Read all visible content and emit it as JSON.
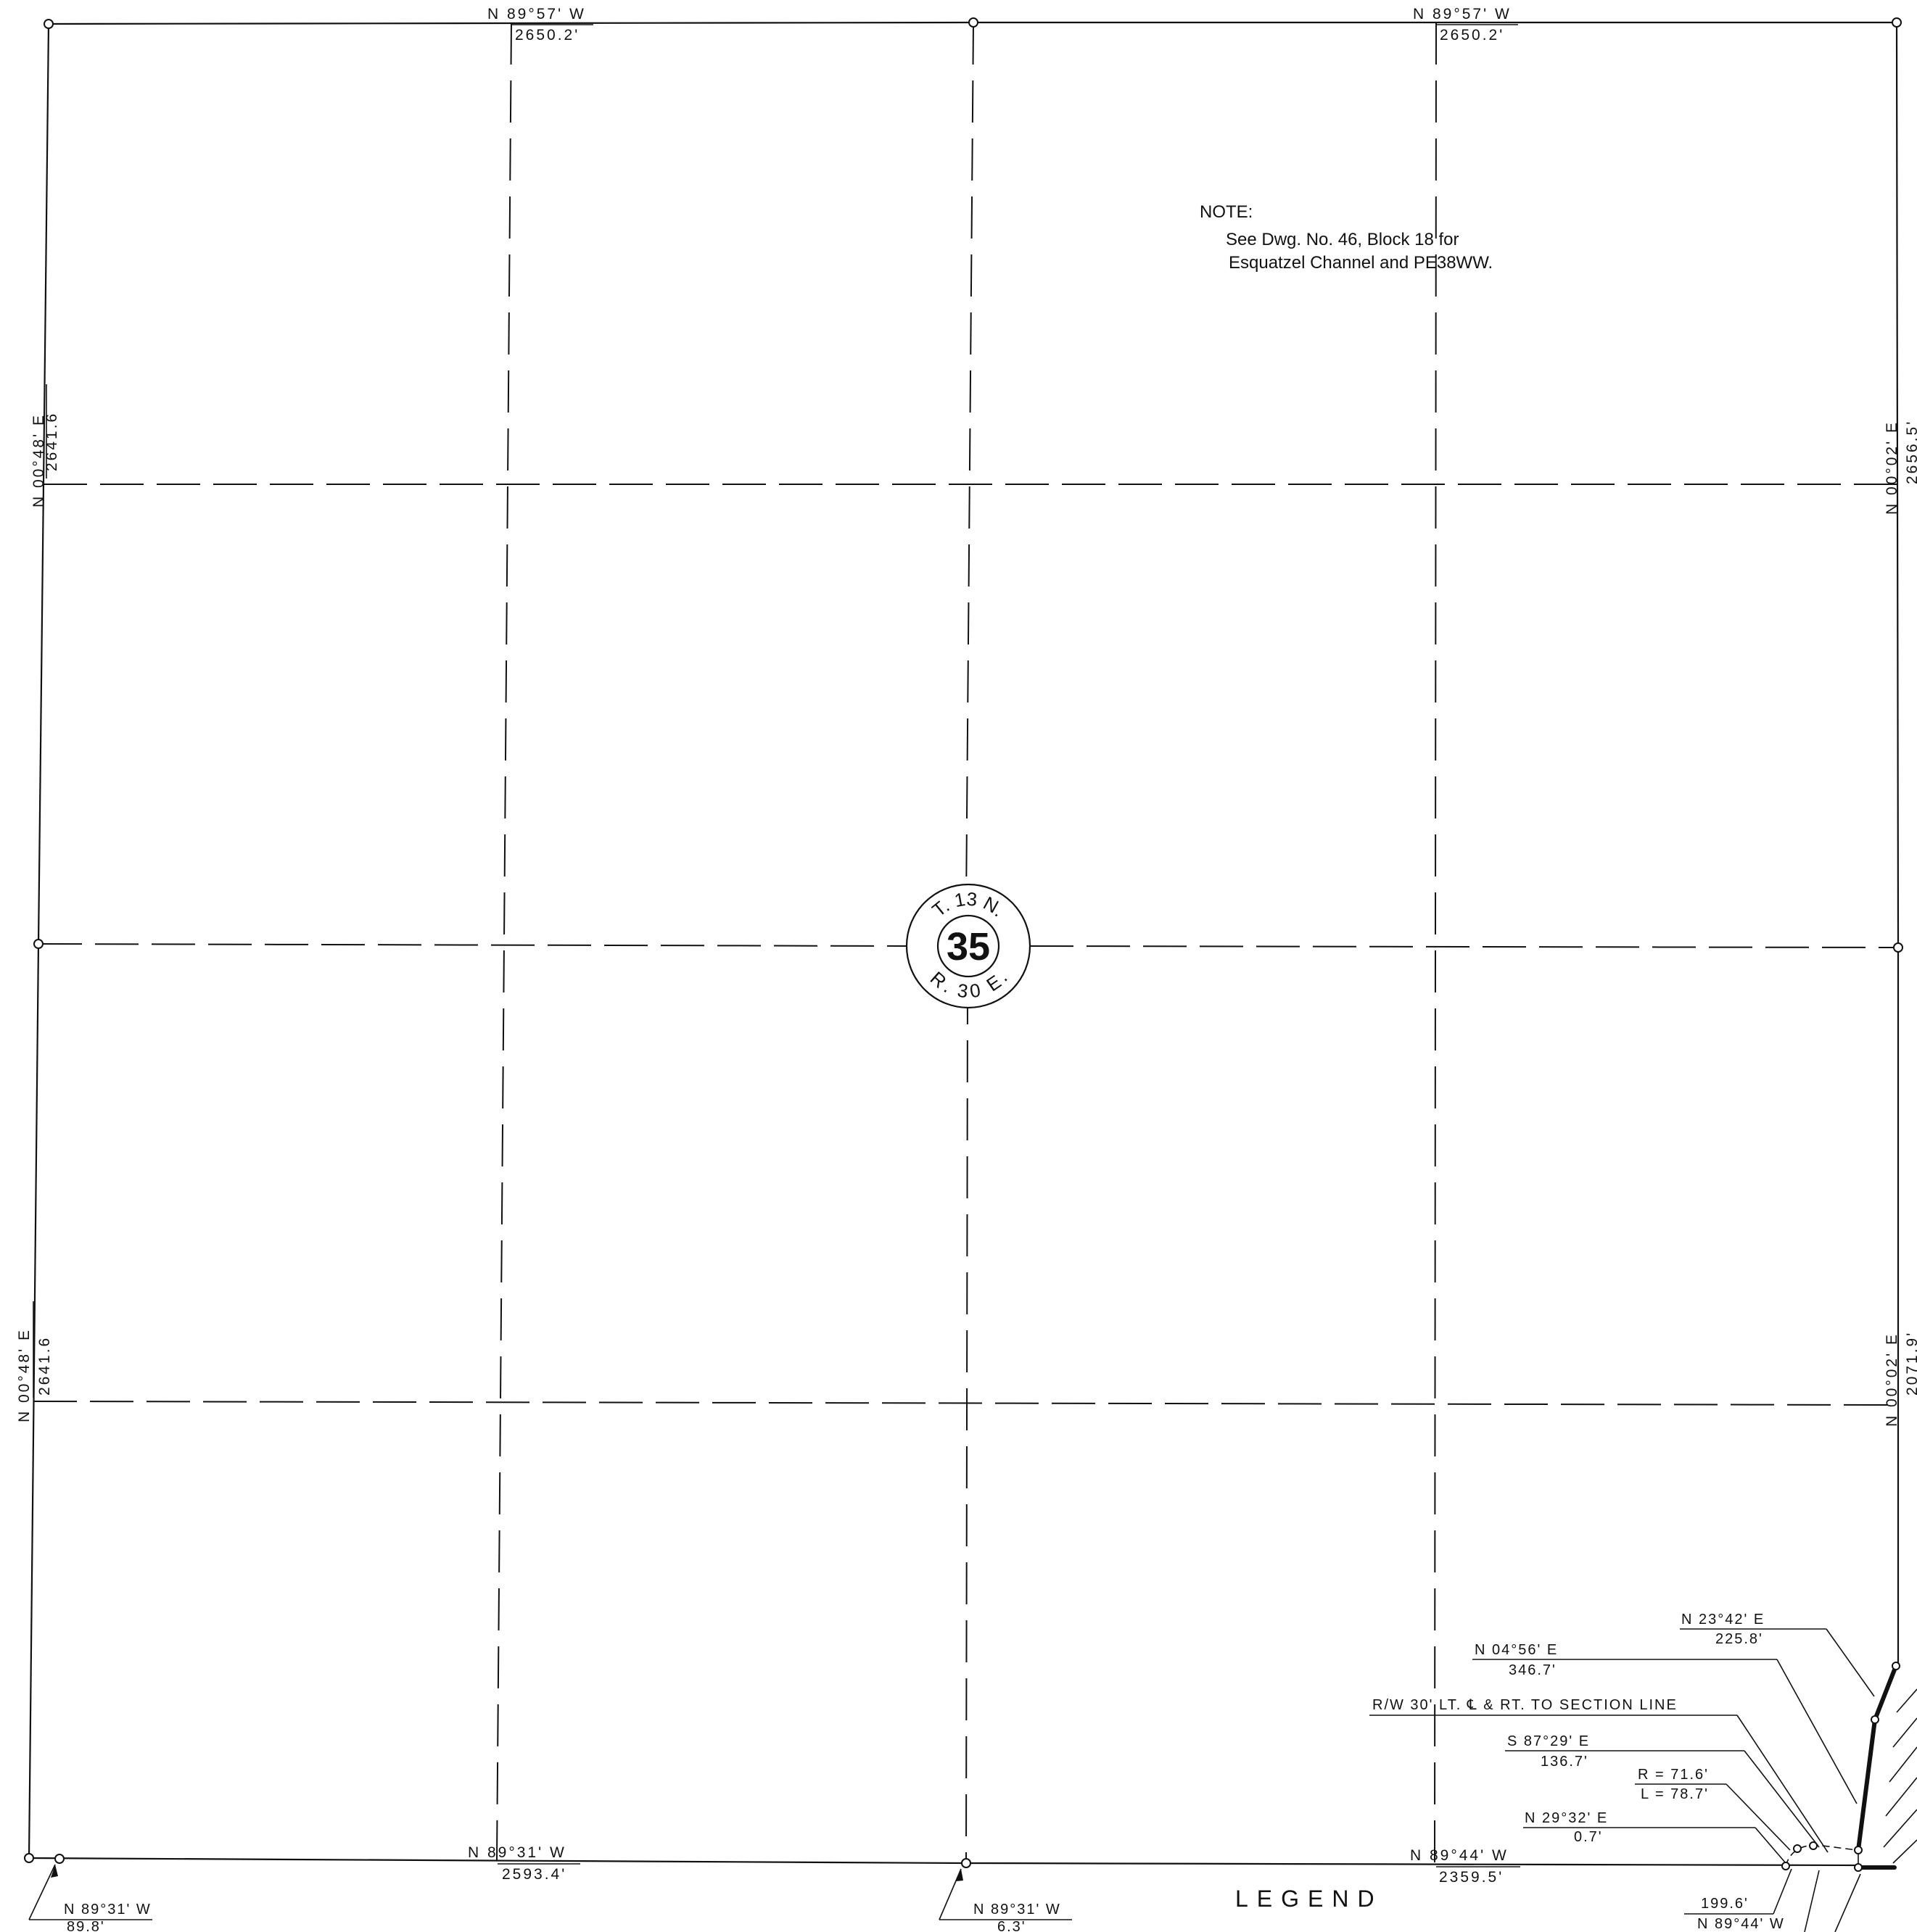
{
  "north_line": {
    "west_half": {
      "bearing": "N  89°57'  W",
      "distance": "2650.2'"
    },
    "east_half": {
      "bearing": "N  89°57'  W",
      "distance": "2650.2'"
    }
  },
  "west_line": {
    "north_half": {
      "bearing": "N  00°48'  E",
      "distance": "2641.6"
    },
    "south_half": {
      "bearing": "N  00°48'  E",
      "distance": "2641.6"
    }
  },
  "east_line": {
    "north_half": {
      "bearing": "N  00°02'  E",
      "distance": "2656.5'"
    },
    "south_half": {
      "bearing": "N  00°02'  E",
      "distance": "2071.9'"
    }
  },
  "south_line": {
    "west_half": {
      "bearing": "N  89°31'  W",
      "distance": "2593.4'"
    },
    "east_half": {
      "bearing": "N  89°44'  W",
      "distance": "2359.5'"
    }
  },
  "note": {
    "title": "NOTE:",
    "line1": "See  Dwg. No. 46, Block  18  for",
    "line2": "Esquatzel Channel  and  PE38WW."
  },
  "section_badge": {
    "township": "T. 13 N.",
    "number": "35",
    "range": "R. 30 E."
  },
  "callouts": {
    "c1": {
      "bearing": "N  23°42'  E",
      "distance": "225.8'"
    },
    "c2": {
      "bearing": "N  04°56'  E",
      "distance": "346.7'"
    },
    "row": "R/W  30'  LT. ℄ & RT. TO SECTION  LINE",
    "c3": {
      "bearing": "S  87°29'  E",
      "distance": "136.7'"
    },
    "curve": {
      "radius": "R = 71.6'",
      "length": "L = 78.7'"
    },
    "c4": {
      "bearing": "N  29°32'  E",
      "distance": "0.7'"
    },
    "c5": {
      "distance": "199.6'",
      "bearing": "N  89°44'  W"
    },
    "sw_tie": {
      "bearing": "N  89°31'  W",
      "distance": "89.8'"
    },
    "s_mid_tie": {
      "bearing": "N  89°31'  W",
      "distance": "6.3'"
    }
  },
  "legend_title": "LEGEND"
}
